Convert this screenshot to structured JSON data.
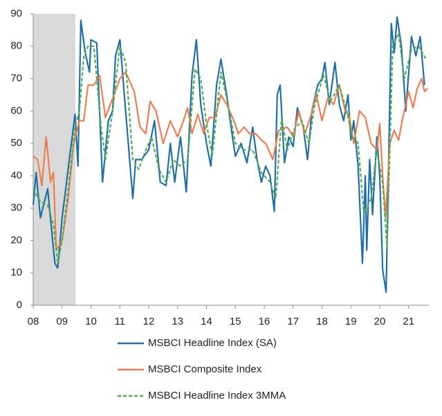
{
  "chart_data": {
    "type": "line",
    "xlim": [
      8,
      21.7
    ],
    "xticks": [
      {
        "value": 8,
        "label": "08"
      },
      {
        "value": 9,
        "label": "09"
      },
      10,
      11,
      12,
      13,
      14,
      15,
      16,
      17,
      18,
      19,
      20,
      21
    ],
    "ylim": [
      0,
      90
    ],
    "yticks": [
      0,
      10,
      20,
      30,
      40,
      50,
      60,
      70,
      80,
      90
    ],
    "shaded_x": [
      8,
      9.46
    ],
    "shade_color": "#d9d9d9",
    "series": [
      {
        "name": "MSBCI Headline Index (SA)",
        "color": "#1f6fa6",
        "dash": false,
        "x": [
          8.0,
          8.1,
          8.25,
          8.5,
          8.75,
          8.85,
          9.0,
          9.25,
          9.45,
          9.55,
          9.65,
          9.8,
          9.95,
          10.0,
          10.2,
          10.4,
          10.6,
          10.75,
          10.85,
          11.0,
          11.2,
          11.45,
          11.55,
          11.75,
          12.0,
          12.2,
          12.4,
          12.6,
          12.75,
          12.9,
          13.1,
          13.3,
          13.5,
          13.65,
          13.8,
          14.0,
          14.15,
          14.35,
          14.5,
          14.7,
          14.9,
          15.0,
          15.2,
          15.4,
          15.6,
          15.75,
          15.9,
          16.05,
          16.2,
          16.35,
          16.45,
          16.55,
          16.7,
          16.85,
          17.0,
          17.15,
          17.35,
          17.5,
          17.65,
          17.85,
          18.0,
          18.1,
          18.25,
          18.45,
          18.6,
          18.75,
          18.9,
          19.0,
          19.1,
          19.25,
          19.4,
          19.5,
          19.55,
          19.65,
          19.75,
          19.9,
          20.0,
          20.1,
          20.22,
          20.4,
          20.5,
          20.6,
          20.75,
          20.9,
          21.1,
          21.25,
          21.4,
          21.55
        ],
        "values": [
          31,
          41,
          27,
          36,
          13,
          11.5,
          27,
          45,
          59,
          43,
          88,
          78,
          72,
          82,
          81,
          38,
          57,
          60,
          77,
          82,
          60,
          33,
          45,
          45,
          48,
          57,
          38,
          37,
          50,
          38,
          52,
          35,
          71,
          82,
          62,
          50,
          43,
          68,
          76,
          65,
          52,
          46,
          50,
          44,
          55,
          45,
          38,
          43,
          40,
          29,
          65,
          68,
          44,
          52,
          49,
          61,
          55,
          45,
          60,
          68,
          70,
          75,
          62,
          75,
          62,
          57,
          65,
          51,
          57,
          43,
          13,
          40,
          17,
          45,
          28,
          52,
          40,
          11,
          4,
          87,
          78,
          89,
          80,
          60,
          83,
          77,
          83,
          68
        ]
      },
      {
        "name": "MSBCI Composite Index",
        "color": "#ed7d4f",
        "dash": false,
        "x": [
          8.0,
          8.15,
          8.3,
          8.45,
          8.6,
          8.7,
          8.8,
          9.0,
          9.2,
          9.4,
          9.6,
          9.75,
          9.9,
          10.1,
          10.3,
          10.5,
          10.8,
          11.0,
          11.2,
          11.5,
          11.7,
          11.9,
          12.05,
          12.25,
          12.5,
          12.75,
          13.0,
          13.2,
          13.35,
          13.5,
          13.7,
          13.9,
          14.1,
          14.3,
          14.5,
          14.7,
          14.95,
          15.1,
          15.3,
          15.5,
          15.7,
          15.9,
          16.05,
          16.3,
          16.5,
          16.8,
          17.0,
          17.2,
          17.4,
          17.6,
          17.8,
          18.0,
          18.2,
          18.4,
          18.6,
          18.8,
          18.95,
          19.1,
          19.3,
          19.5,
          19.7,
          19.9,
          20.0,
          20.1,
          20.2,
          20.35,
          20.5,
          20.65,
          20.8,
          21.0,
          21.15,
          21.3,
          21.45,
          21.55,
          21.65
        ],
        "values": [
          46,
          45,
          37,
          52,
          38,
          41,
          17,
          20,
          32,
          50,
          57,
          57,
          68,
          68,
          71,
          58,
          65,
          70,
          72,
          66,
          55,
          53,
          63,
          60,
          50,
          57,
          52,
          57,
          61,
          53,
          59,
          53,
          58,
          58,
          65,
          62,
          57,
          53,
          55,
          53,
          53,
          51,
          50,
          45,
          54,
          55,
          52,
          60,
          53,
          58,
          65,
          57,
          64,
          62,
          68,
          60,
          58,
          50,
          60,
          58,
          50,
          48,
          56,
          40,
          27,
          50,
          54,
          51,
          58,
          66,
          61,
          67,
          70,
          66,
          67
        ]
      },
      {
        "name": "MSBCI Headline Index 3MMA",
        "color": "#4caf50",
        "dash": true,
        "x": [
          8.0,
          8.25,
          8.5,
          8.7,
          8.85,
          9.0,
          9.2,
          9.45,
          9.6,
          9.75,
          9.9,
          10.1,
          10.35,
          10.5,
          10.75,
          11.0,
          11.2,
          11.45,
          11.65,
          11.9,
          12.1,
          12.35,
          12.6,
          12.85,
          13.1,
          13.35,
          13.6,
          13.8,
          14.0,
          14.2,
          14.5,
          14.75,
          15.0,
          15.3,
          15.6,
          15.9,
          16.2,
          16.4,
          16.6,
          16.8,
          17.0,
          17.3,
          17.55,
          17.75,
          18.05,
          18.3,
          18.6,
          18.85,
          19.05,
          19.25,
          19.45,
          19.7,
          19.9,
          20.1,
          20.25,
          20.45,
          20.65,
          20.85,
          21.1,
          21.35,
          21.6
        ],
        "values": [
          36,
          32,
          31,
          25,
          13,
          20,
          35,
          55,
          60,
          77,
          80,
          80,
          55,
          45,
          60,
          80,
          75,
          45,
          42,
          48,
          52,
          42,
          38,
          45,
          43,
          45,
          73,
          70,
          56,
          46,
          72,
          62,
          50,
          48,
          48,
          41,
          38,
          33,
          58,
          48,
          54,
          57,
          50,
          62,
          71,
          63,
          68,
          60,
          52,
          50,
          28,
          33,
          48,
          38,
          18,
          80,
          84,
          70,
          79,
          80,
          76
        ]
      }
    ]
  }
}
